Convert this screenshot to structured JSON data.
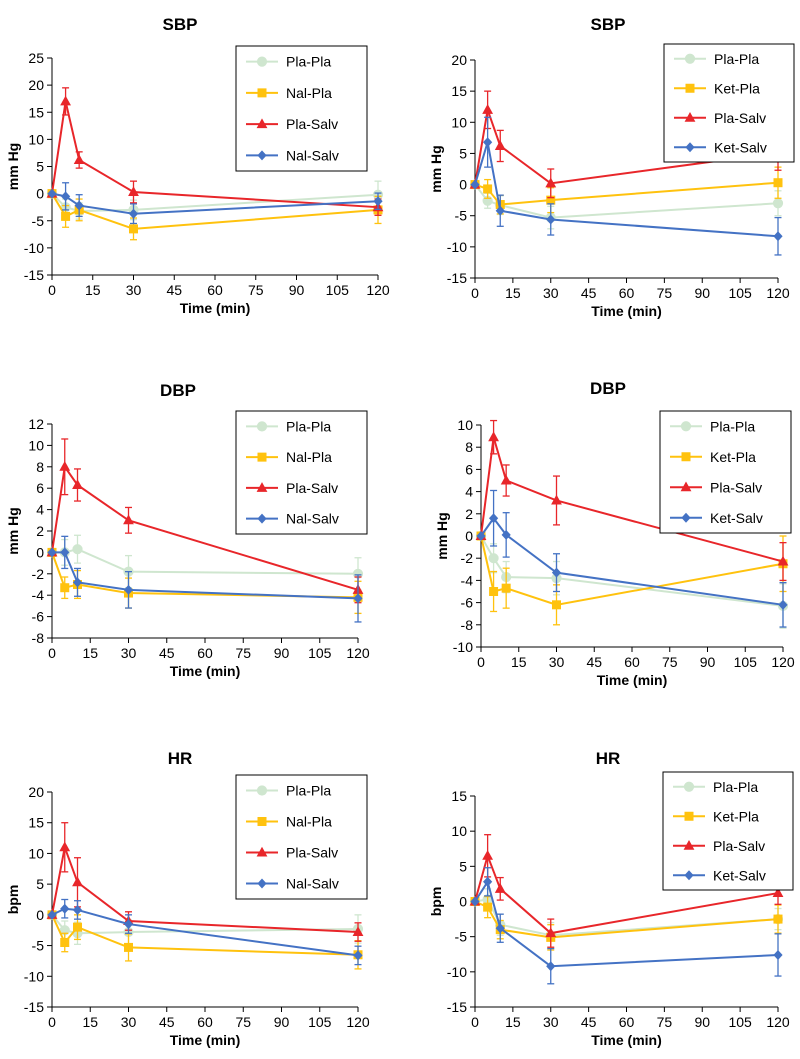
{
  "chart_data": [
    {
      "type": "line",
      "title": "SBP",
      "xlabel": "Time (min)",
      "ylabel": "mm Hg",
      "xlim": [
        0,
        120
      ],
      "ylim": [
        -15,
        25
      ],
      "xticks": [
        0,
        15,
        30,
        45,
        60,
        75,
        90,
        105,
        120
      ],
      "yticks": [
        -15,
        -10,
        -5,
        0,
        5,
        10,
        15,
        20,
        25
      ],
      "x": [
        0,
        5,
        10,
        30,
        120
      ],
      "legend_position": "top-right",
      "series": [
        {
          "name": "Pla-Pla",
          "color": "#cfe6cf",
          "marker": "circle",
          "values": [
            0,
            -2.5,
            -3.2,
            -3.0,
            -0.2
          ],
          "errors": [
            0,
            1.5,
            1.5,
            1.8,
            2.5
          ]
        },
        {
          "name": "Nal-Pla",
          "color": "#ffc20e",
          "marker": "square",
          "values": [
            0,
            -4.2,
            -3.0,
            -6.5,
            -3.0
          ],
          "errors": [
            0,
            2.0,
            2.0,
            2.0,
            2.5
          ]
        },
        {
          "name": "Pla-Salv",
          "color": "#e8262a",
          "marker": "triangle",
          "values": [
            0,
            17.0,
            6.2,
            0.3,
            -2.5
          ],
          "errors": [
            0,
            2.5,
            1.5,
            2.0,
            1.5
          ]
        },
        {
          "name": "Nal-Salv",
          "color": "#4472c4",
          "marker": "diamond",
          "values": [
            0,
            -0.5,
            -2.2,
            -3.7,
            -1.4
          ],
          "errors": [
            0,
            2.5,
            2.0,
            1.8,
            1.5
          ]
        }
      ]
    },
    {
      "type": "line",
      "title": "SBP",
      "xlabel": "Time (min)",
      "ylabel": "mm Hg",
      "xlim": [
        0,
        120
      ],
      "ylim": [
        -15,
        20
      ],
      "xticks": [
        0,
        15,
        30,
        45,
        60,
        75,
        90,
        105,
        120
      ],
      "yticks": [
        -15,
        -10,
        -5,
        0,
        5,
        10,
        15,
        20
      ],
      "x": [
        0,
        5,
        10,
        30,
        120
      ],
      "legend_position": "top-right",
      "series": [
        {
          "name": "Pla-Pla",
          "color": "#cfe6cf",
          "marker": "circle",
          "values": [
            0,
            -2.6,
            -3.3,
            -5.3,
            -3.0
          ],
          "errors": [
            0,
            1.2,
            1.5,
            1.8,
            2.0
          ]
        },
        {
          "name": "Ket-Pla",
          "color": "#ffc20e",
          "marker": "square",
          "values": [
            0,
            -0.7,
            -3.2,
            -2.5,
            0.3
          ],
          "errors": [
            0,
            1.5,
            1.5,
            2.0,
            2.5
          ]
        },
        {
          "name": "Pla-Salv",
          "color": "#e8262a",
          "marker": "triangle",
          "values": [
            0,
            12.0,
            6.2,
            0.2,
            5.1
          ],
          "errors": [
            0,
            3.0,
            2.5,
            2.3,
            2.8
          ]
        },
        {
          "name": "Ket-Salv",
          "color": "#4472c4",
          "marker": "diamond",
          "values": [
            0,
            6.8,
            -4.2,
            -5.6,
            -8.3
          ],
          "errors": [
            0,
            4.0,
            2.5,
            2.5,
            3.0
          ]
        }
      ]
    },
    {
      "type": "line",
      "title": "DBP",
      "xlabel": "Time (min)",
      "ylabel": "mm Hg",
      "xlim": [
        0,
        120
      ],
      "ylim": [
        -8,
        12
      ],
      "xticks": [
        0,
        15,
        30,
        45,
        60,
        75,
        90,
        105,
        120
      ],
      "yticks": [
        -8,
        -6,
        -4,
        -2,
        0,
        2,
        4,
        6,
        8,
        10,
        12
      ],
      "x": [
        0,
        5,
        10,
        30,
        120
      ],
      "legend_position": "top-right",
      "series": [
        {
          "name": "Pla-Pla",
          "color": "#cfe6cf",
          "marker": "circle",
          "values": [
            0,
            0.0,
            0.3,
            -1.8,
            -2.0
          ],
          "errors": [
            0,
            1.2,
            1.3,
            1.5,
            1.5
          ]
        },
        {
          "name": "Nal-Pla",
          "color": "#ffc20e",
          "marker": "square",
          "values": [
            0,
            -3.3,
            -3.0,
            -3.8,
            -4.2
          ],
          "errors": [
            0,
            1.0,
            1.3,
            1.4,
            1.5
          ]
        },
        {
          "name": "Pla-Salv",
          "color": "#e8262a",
          "marker": "triangle",
          "values": [
            0,
            8.0,
            6.3,
            3.0,
            -3.5
          ],
          "errors": [
            0,
            2.6,
            1.5,
            1.2,
            1.2
          ]
        },
        {
          "name": "Nal-Salv",
          "color": "#4472c4",
          "marker": "diamond",
          "values": [
            0,
            0.0,
            -2.8,
            -3.5,
            -4.3
          ],
          "errors": [
            0,
            1.5,
            1.3,
            1.7,
            2.2
          ]
        }
      ]
    },
    {
      "type": "line",
      "title": "DBP",
      "xlabel": "Time (min)",
      "ylabel": "mm Hg",
      "xlim": [
        0,
        120
      ],
      "ylim": [
        -10,
        10
      ],
      "xticks": [
        0,
        15,
        30,
        45,
        60,
        75,
        90,
        105,
        120
      ],
      "yticks": [
        -10,
        -8,
        -6,
        -4,
        -2,
        0,
        2,
        4,
        6,
        8,
        10
      ],
      "x": [
        0,
        5,
        10,
        30,
        120
      ],
      "legend_position": "top-right",
      "series": [
        {
          "name": "Pla-Pla",
          "color": "#cfe6cf",
          "marker": "circle",
          "values": [
            0,
            -2.0,
            -3.7,
            -3.8,
            -6.3
          ],
          "errors": [
            0,
            1.3,
            1.4,
            1.5,
            2.0
          ]
        },
        {
          "name": "Ket-Pla",
          "color": "#ffc20e",
          "marker": "square",
          "values": [
            0,
            -5.0,
            -4.7,
            -6.2,
            -2.5
          ],
          "errors": [
            0,
            1.8,
            1.8,
            1.8,
            2.5
          ]
        },
        {
          "name": "Pla-Salv",
          "color": "#e8262a",
          "marker": "triangle",
          "values": [
            0,
            8.9,
            5.0,
            3.2,
            -2.3
          ],
          "errors": [
            0,
            1.5,
            1.4,
            2.2,
            1.7
          ]
        },
        {
          "name": "Ket-Salv",
          "color": "#4472c4",
          "marker": "diamond",
          "values": [
            0,
            1.6,
            0.1,
            -3.3,
            -6.2
          ],
          "errors": [
            0,
            2.5,
            2.0,
            1.7,
            2.0
          ]
        }
      ]
    },
    {
      "type": "line",
      "title": "HR",
      "xlabel": "Time (min)",
      "ylabel": "bpm",
      "xlim": [
        0,
        120
      ],
      "ylim": [
        -15,
        20
      ],
      "xticks": [
        0,
        15,
        30,
        45,
        60,
        75,
        90,
        105,
        120
      ],
      "yticks": [
        -15,
        -10,
        -5,
        0,
        5,
        10,
        15,
        20
      ],
      "x": [
        0,
        5,
        10,
        30,
        120
      ],
      "legend_position": "top-right",
      "series": [
        {
          "name": "Pla-Pla",
          "color": "#cfe6cf",
          "marker": "circle",
          "values": [
            0,
            -2.5,
            -3.0,
            -2.8,
            -2.3
          ],
          "errors": [
            0,
            1.5,
            1.8,
            2.0,
            2.3
          ]
        },
        {
          "name": "Nal-Pla",
          "color": "#ffc20e",
          "marker": "square",
          "values": [
            0,
            -4.5,
            -2.0,
            -5.3,
            -6.5
          ],
          "errors": [
            0,
            1.5,
            2.0,
            2.2,
            2.3
          ]
        },
        {
          "name": "Pla-Salv",
          "color": "#e8262a",
          "marker": "triangle",
          "values": [
            0,
            11.0,
            5.3,
            -1.0,
            -2.8
          ],
          "errors": [
            0,
            4.0,
            4.0,
            1.5,
            1.5
          ]
        },
        {
          "name": "Nal-Salv",
          "color": "#4472c4",
          "marker": "diamond",
          "values": [
            0,
            1.0,
            0.8,
            -1.5,
            -6.6
          ],
          "errors": [
            0,
            1.5,
            1.5,
            1.5,
            1.5
          ]
        }
      ]
    },
    {
      "type": "line",
      "title": "HR",
      "xlabel": "Time (min)",
      "ylabel": "bpm",
      "xlim": [
        0,
        120
      ],
      "ylim": [
        -15,
        15
      ],
      "xticks": [
        0,
        15,
        30,
        45,
        60,
        75,
        90,
        105,
        120
      ],
      "yticks": [
        -15,
        -10,
        -5,
        0,
        5,
        10,
        15
      ],
      "x": [
        0,
        5,
        10,
        30,
        120
      ],
      "legend_position": "top-right",
      "series": [
        {
          "name": "Pla-Pla",
          "color": "#cfe6cf",
          "marker": "circle",
          "values": [
            0,
            0.3,
            -3.3,
            -4.8,
            -2.5
          ],
          "errors": [
            0,
            1.5,
            1.5,
            1.8,
            1.5
          ]
        },
        {
          "name": "Ket-Pla",
          "color": "#ffc20e",
          "marker": "square",
          "values": [
            0,
            -0.8,
            -4.0,
            -5.1,
            -2.5
          ],
          "errors": [
            0,
            1.5,
            1.3,
            1.8,
            2.0
          ]
        },
        {
          "name": "Pla-Salv",
          "color": "#e8262a",
          "marker": "triangle",
          "values": [
            0,
            6.5,
            1.8,
            -4.5,
            1.2
          ],
          "errors": [
            0,
            3.0,
            1.6,
            2.0,
            1.6
          ]
        },
        {
          "name": "Ket-Salv",
          "color": "#4472c4",
          "marker": "diamond",
          "values": [
            0,
            2.8,
            -3.8,
            -9.2,
            -7.6
          ],
          "errors": [
            0,
            2.0,
            2.0,
            2.5,
            3.0
          ]
        }
      ]
    }
  ]
}
